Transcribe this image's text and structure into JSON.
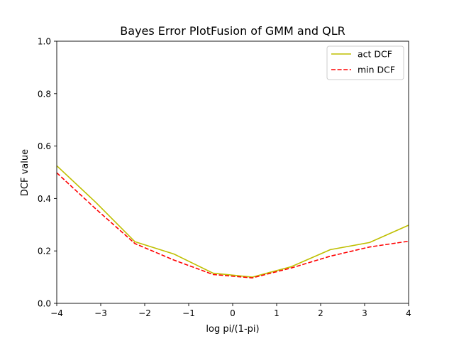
{
  "chart_data": {
    "type": "line",
    "title": "Bayes Error PlotFusion of GMM and QLR",
    "xlabel": "log pi/(1-pi)",
    "ylabel": "DCF value",
    "xlim": [
      -4,
      4
    ],
    "ylim": [
      0.0,
      1.0
    ],
    "xticks": [
      -4,
      -3,
      -2,
      -1,
      0,
      1,
      2,
      3,
      4
    ],
    "xtick_labels": [
      "−4",
      "−3",
      "−2",
      "−1",
      "0",
      "1",
      "2",
      "3",
      "4"
    ],
    "yticks": [
      0.0,
      0.2,
      0.4,
      0.6,
      0.8,
      1.0
    ],
    "ytick_labels": [
      "0.0",
      "0.2",
      "0.4",
      "0.6",
      "0.8",
      "1.0"
    ],
    "grid": false,
    "legend_position": "top-right",
    "series": [
      {
        "name": "act DCF",
        "color": "#bfbf00",
        "style": "solid",
        "x": [
          -4.0,
          -3.111,
          -2.222,
          -1.333,
          -0.444,
          0.444,
          1.333,
          2.222,
          3.111,
          4.0
        ],
        "y": [
          0.525,
          0.385,
          0.235,
          0.188,
          0.115,
          0.1,
          0.14,
          0.205,
          0.232,
          0.298
        ]
      },
      {
        "name": "min DCF",
        "color": "#ff0000",
        "style": "dashed",
        "x": [
          -4.0,
          -3.111,
          -2.222,
          -1.333,
          -0.444,
          0.444,
          1.333,
          2.222,
          3.111,
          4.0
        ],
        "y": [
          0.498,
          0.36,
          0.228,
          0.165,
          0.11,
          0.097,
          0.135,
          0.18,
          0.215,
          0.237
        ]
      }
    ]
  }
}
